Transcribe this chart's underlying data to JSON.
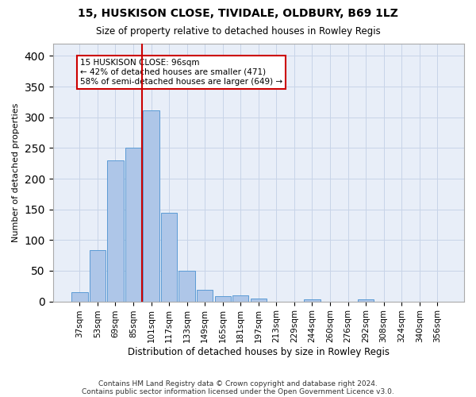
{
  "title1": "15, HUSKISON CLOSE, TIVIDALE, OLDBURY, B69 1LZ",
  "title2": "Size of property relative to detached houses in Rowley Regis",
  "xlabel": "Distribution of detached houses by size in Rowley Regis",
  "ylabel": "Number of detached properties",
  "footer1": "Contains HM Land Registry data © Crown copyright and database right 2024.",
  "footer2": "Contains public sector information licensed under the Open Government Licence v3.0.",
  "categories": [
    "37sqm",
    "53sqm",
    "69sqm",
    "85sqm",
    "101sqm",
    "117sqm",
    "133sqm",
    "149sqm",
    "165sqm",
    "181sqm",
    "197sqm",
    "213sqm",
    "229sqm",
    "244sqm",
    "260sqm",
    "276sqm",
    "292sqm",
    "308sqm",
    "324sqm",
    "340sqm",
    "356sqm"
  ],
  "values": [
    15,
    83,
    230,
    250,
    311,
    144,
    50,
    19,
    9,
    10,
    5,
    0,
    0,
    4,
    0,
    0,
    3,
    0,
    0,
    0,
    0
  ],
  "bar_color": "#aec6e8",
  "bar_edge_color": "#5b9bd5",
  "vline_index": 4,
  "vline_color": "#cc0000",
  "annotation_line1": "15 HUSKISON CLOSE: 96sqm",
  "annotation_line2": "← 42% of detached houses are smaller (471)",
  "annotation_line3": "58% of semi-detached houses are larger (649) →",
  "annotation_box_color": "white",
  "annotation_box_edge": "#cc0000",
  "ylim_max": 420,
  "yticks": [
    0,
    50,
    100,
    150,
    200,
    250,
    300,
    350,
    400
  ],
  "grid_color": "#c8d4e8",
  "background_color": "#e8eef8"
}
